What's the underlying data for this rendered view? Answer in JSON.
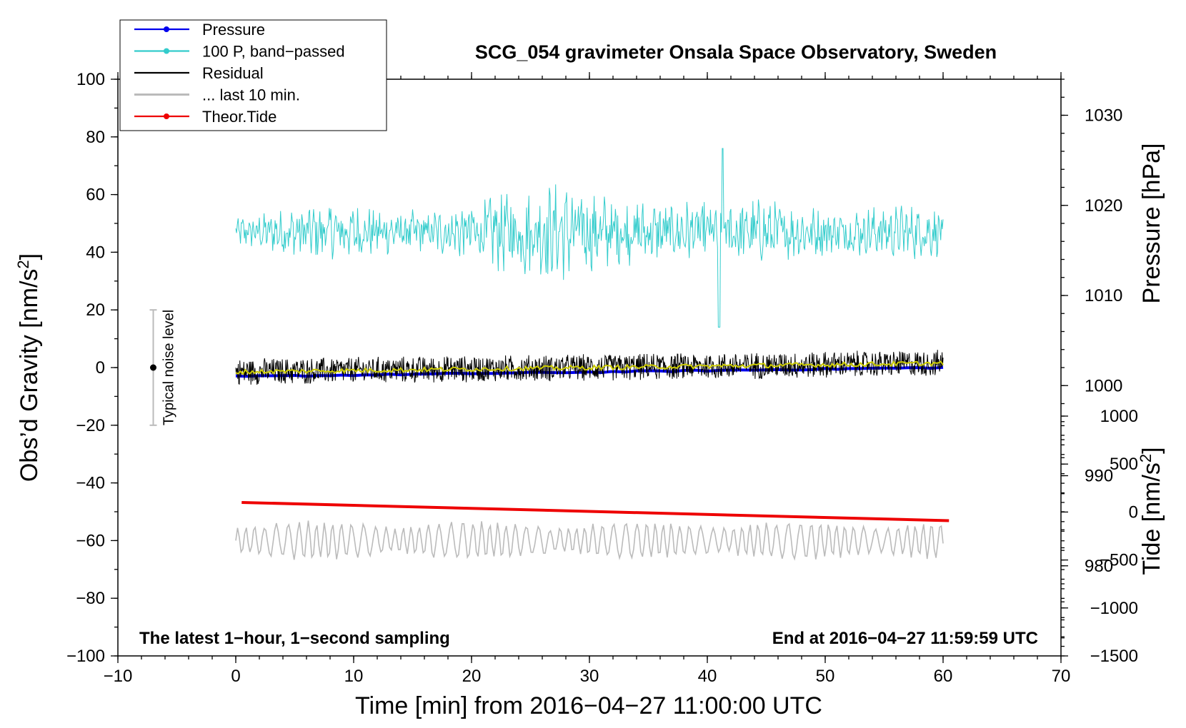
{
  "chart_data": {
    "type": "line",
    "title": "SCG_054 gravimeter Onsala Space Observatory, Sweden",
    "xlabel": "Time [min] from 2016−04−27 11:00:00 UTC",
    "ylabel_left": "Obs’d Gravity [nm/s",
    "ylabel_left_sup": "2",
    "ylabel_left_close": "]",
    "ylabel_right_pressure": "Pressure [hPa]",
    "ylabel_right_tide": "Tide [nm/s",
    "ylabel_right_tide_sup": "2",
    "ylabel_right_tide_close": "]",
    "xlim": [
      -10,
      70
    ],
    "ylim_left": [
      -100,
      100
    ],
    "ylim_right_pressure": [
      970,
      1034
    ],
    "ylim_right_tide": [
      -1500,
      1000
    ],
    "x_ticks": [
      "−10",
      "0",
      "10",
      "20",
      "30",
      "40",
      "50",
      "60",
      "70"
    ],
    "y_ticks_left": [
      "100",
      "80",
      "60",
      "40",
      "20",
      "0",
      "−20",
      "−40",
      "−60",
      "−80",
      "−100"
    ],
    "y_ticks_pressure": [
      "1030",
      "1020",
      "1010",
      "1000",
      "990",
      "980"
    ],
    "y_ticks_tide": [
      "1000",
      "500",
      "0",
      "−500",
      "−1000",
      "−1500"
    ],
    "legend": {
      "placement": "top-left",
      "entries": [
        {
          "label": "Pressure",
          "color": "#0000ee",
          "marker": true
        },
        {
          "label": "100 P, band−passed",
          "color": "#33cccc",
          "marker": true
        },
        {
          "label": "Residual",
          "color": "#000000",
          "marker": false
        },
        {
          "label": "... last 10 min.",
          "color": "#bbbbbb",
          "marker": false
        },
        {
          "label": "Theor.Tide",
          "color": "#ee0000",
          "marker": true
        }
      ]
    },
    "annotations": {
      "bottom_left": "The latest 1−hour, 1−second sampling",
      "bottom_right": "End at 2016−04−27 11:59:59 UTC",
      "noise_label": "Typical noise level",
      "noise_bar": {
        "x": -7,
        "y_low": -20,
        "y_high": 20,
        "center": 0
      }
    },
    "series": [
      {
        "name": "Pressure",
        "axis": "pressure",
        "color": "#0000ee",
        "x_start": 0,
        "x_end": 60,
        "y_start": 1001.0,
        "y_end": 1002.0
      },
      {
        "name": "100 P, band-passed",
        "axis": "left",
        "color": "#33cccc",
        "x_start": 0,
        "x_end": 60,
        "center": 47,
        "min": 14,
        "max": 76
      },
      {
        "name": "Residual",
        "axis": "left",
        "color": "#000000",
        "x_start": 0,
        "x_end": 60,
        "center_start": -1.5,
        "center_end": 1.5,
        "min": -9,
        "max": 9
      },
      {
        "name": "Residual smoothed",
        "axis": "left",
        "color": "#cccc00",
        "x_start": 0,
        "x_end": 60,
        "center_start": -1.5,
        "center_end": 1.5
      },
      {
        "name": "... last 10 min.",
        "axis": "left",
        "color": "#bbbbbb",
        "x_start": 0,
        "x_end": 60,
        "center": -60,
        "min": -68,
        "max": -53
      },
      {
        "name": "Theor.Tide",
        "axis": "tide",
        "color": "#ee0000",
        "x_start": 0.5,
        "x_end": 60.5,
        "y_start": 100,
        "y_end": -90
      }
    ]
  }
}
